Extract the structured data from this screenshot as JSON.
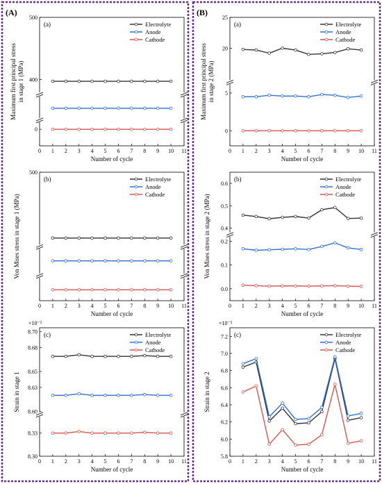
{
  "figure": {
    "panels": [
      {
        "id": "A",
        "label": "(A)"
      },
      {
        "id": "B",
        "label": "(B)"
      }
    ]
  },
  "colors": {
    "frame": "#6a2c91",
    "Electrolyte": "#333333",
    "Anode": "#2f6fd6",
    "Cathode": "#d9534f"
  },
  "chart_data": [
    {
      "id": "A-a",
      "type": "line",
      "panel_label": "(a)",
      "xlabel": "Number of cycle",
      "ylabel": "Maximum first principal stress\nin stage 1 (MPa)",
      "xlim": [
        0,
        11
      ],
      "xticks": [
        0,
        1,
        2,
        3,
        4,
        5,
        6,
        7,
        8,
        9,
        10,
        11
      ],
      "segments": [
        {
          "range": [
            -50,
            20
          ],
          "ticks": [
            0
          ],
          "frac": [
            0,
            0.18
          ]
        },
        {
          "range": [
            70,
            90
          ],
          "ticks": [],
          "frac": [
            0.22,
            0.38
          ]
        },
        {
          "range": [
            380,
            500
          ],
          "ticks": [
            400,
            500
          ],
          "frac": [
            0.42,
            1
          ]
        }
      ],
      "x": [
        1,
        2,
        3,
        4,
        5,
        6,
        7,
        8,
        9,
        10
      ],
      "series": [
        {
          "name": "Electrolyte",
          "values": [
            397,
            397,
            397,
            397,
            397,
            397,
            397,
            397,
            397,
            397
          ]
        },
        {
          "name": "Anode",
          "values": [
            79,
            79,
            79,
            79,
            79,
            79,
            79,
            79,
            79,
            79
          ]
        },
        {
          "name": "Cathode",
          "values": [
            0,
            0,
            0,
            0,
            0,
            0,
            0,
            0,
            0,
            0
          ]
        }
      ]
    },
    {
      "id": "A-b",
      "type": "line",
      "panel_label": "(b)",
      "xlabel": "Number of cycle",
      "ylabel": "Von Mises stress in stage 1 (MPa)",
      "xlim": [
        0,
        11
      ],
      "xticks": [
        0,
        1,
        2,
        3,
        4,
        5,
        6,
        7,
        8,
        9,
        10,
        11
      ],
      "segments": [
        {
          "range": [
            -10,
            30
          ],
          "ticks": [],
          "frac": [
            0,
            0.17
          ]
        },
        {
          "range": [
            120,
            140
          ],
          "ticks": [],
          "frac": [
            0.22,
            0.4
          ]
        },
        {
          "range": [
            370,
            500
          ],
          "ticks": [
            500
          ],
          "frac": [
            0.44,
            1
          ]
        }
      ],
      "x": [
        1,
        2,
        3,
        4,
        5,
        6,
        7,
        8,
        9,
        10
      ],
      "series": [
        {
          "name": "Electrolyte",
          "values": [
            381,
            381,
            381,
            381,
            381,
            381,
            381,
            381,
            381,
            381
          ]
        },
        {
          "name": "Anode",
          "values": [
            130,
            130,
            130,
            130,
            130,
            130,
            130,
            130,
            130,
            130
          ]
        },
        {
          "name": "Cathode",
          "values": [
            10,
            10,
            10,
            10,
            10,
            10,
            10,
            10,
            10,
            10
          ]
        }
      ]
    },
    {
      "id": "A-c",
      "type": "line",
      "panel_label": "(c)",
      "xlabel": "Number of cycle",
      "ylabel": "Strain in stage 1",
      "yexp": "×10⁻⁵",
      "xlim": [
        0,
        11
      ],
      "xticks": [
        0,
        1,
        2,
        3,
        4,
        5,
        6,
        7,
        8,
        9,
        10,
        11
      ],
      "segments": [
        {
          "range": [
            8.3,
            8.35
          ],
          "ticks": [
            8.3,
            8.33
          ],
          "frac": [
            0,
            0.3
          ]
        },
        {
          "range": [
            8.6,
            8.705
          ],
          "ticks": [
            8.6,
            8.63,
            8.65,
            8.68,
            8.7
          ],
          "frac": [
            0.35,
            1
          ]
        }
      ],
      "x": [
        1,
        2,
        3,
        4,
        5,
        6,
        7,
        8,
        9,
        10
      ],
      "series": [
        {
          "name": "Electrolyte",
          "values": [
            8.669,
            8.669,
            8.671,
            8.669,
            8.669,
            8.669,
            8.669,
            8.67,
            8.669,
            8.669
          ]
        },
        {
          "name": "Anode",
          "values": [
            8.62,
            8.62,
            8.622,
            8.62,
            8.62,
            8.62,
            8.62,
            8.621,
            8.62,
            8.62
          ]
        },
        {
          "name": "Cathode",
          "values": [
            8.33,
            8.33,
            8.332,
            8.33,
            8.33,
            8.33,
            8.33,
            8.331,
            8.33,
            8.33
          ]
        }
      ]
    },
    {
      "id": "B-a",
      "type": "line",
      "panel_label": "(a)",
      "xlabel": "Number of cycle",
      "ylabel": "Maximum first principal stress\nin stage 2 (MPa)",
      "xlim": [
        0,
        11
      ],
      "xticks": [
        0,
        1,
        2,
        3,
        4,
        5,
        6,
        7,
        8,
        9,
        10,
        11
      ],
      "segments": [
        {
          "range": [
            -2,
            6
          ],
          "ticks": [
            0,
            5
          ],
          "frac": [
            0,
            0.47
          ]
        },
        {
          "range": [
            15,
            25
          ],
          "ticks": [
            20,
            25
          ],
          "frac": [
            0.52,
            1
          ]
        }
      ],
      "x": [
        1,
        2,
        3,
        4,
        5,
        6,
        7,
        8,
        9,
        10
      ],
      "series": [
        {
          "name": "Electrolyte",
          "values": [
            19.8,
            19.7,
            19.2,
            20.0,
            19.7,
            19.0,
            19.1,
            19.3,
            19.9,
            19.7
          ]
        },
        {
          "name": "Anode",
          "values": [
            4.5,
            4.5,
            4.7,
            4.6,
            4.6,
            4.5,
            4.8,
            4.7,
            4.4,
            4.6
          ]
        },
        {
          "name": "Cathode",
          "values": [
            0,
            0,
            0,
            0,
            0,
            0,
            0,
            0,
            0,
            0
          ]
        }
      ]
    },
    {
      "id": "B-b",
      "type": "line",
      "panel_label": "(b)",
      "xlabel": "Number of cycle",
      "ylabel": "Von Mises stress in stage 2 (MPa)",
      "xlim": [
        0,
        11
      ],
      "xticks": [
        0,
        1,
        2,
        3,
        4,
        5,
        6,
        7,
        8,
        9,
        10,
        11
      ],
      "segments": [
        {
          "range": [
            -0.05,
            0.22
          ],
          "ticks": [
            0.0,
            0.1,
            0.2
          ],
          "frac": [
            0,
            0.5
          ]
        },
        {
          "range": [
            0.38,
            0.65
          ],
          "ticks": [
            0.4,
            0.5,
            0.6
          ],
          "frac": [
            0.53,
            1
          ]
        }
      ],
      "x": [
        1,
        2,
        3,
        4,
        5,
        6,
        7,
        8,
        9,
        10
      ],
      "series": [
        {
          "name": "Electrolyte",
          "values": [
            0.458,
            0.452,
            0.442,
            0.448,
            0.452,
            0.445,
            0.482,
            0.492,
            0.443,
            0.445
          ]
        },
        {
          "name": "Anode",
          "values": [
            0.168,
            0.162,
            0.164,
            0.166,
            0.168,
            0.165,
            0.178,
            0.193,
            0.172,
            0.165
          ]
        },
        {
          "name": "Cathode",
          "values": [
            0.015,
            0.013,
            0.011,
            0.012,
            0.012,
            0.011,
            0.012,
            0.013,
            0.011,
            0.01
          ]
        }
      ]
    },
    {
      "id": "B-c",
      "type": "line",
      "panel_label": "(c)",
      "xlabel": "Number of cycle",
      "ylabel": "Strain in stage 2",
      "yexp": "×10⁻⁵",
      "xlim": [
        0,
        11
      ],
      "xticks": [
        0,
        1,
        2,
        3,
        4,
        5,
        6,
        7,
        8,
        9,
        10,
        11
      ],
      "segments": [
        {
          "range": [
            5.8,
            7.3
          ],
          "ticks": [
            5.8,
            6.0,
            6.2,
            6.4,
            6.6,
            6.8,
            7.0,
            7.2
          ],
          "frac": [
            0,
            1
          ]
        }
      ],
      "x": [
        1,
        2,
        3,
        4,
        5,
        6,
        7,
        8,
        9,
        10
      ],
      "series": [
        {
          "name": "Electrolyte",
          "values": [
            6.84,
            6.9,
            6.21,
            6.36,
            6.18,
            6.19,
            6.32,
            6.94,
            6.22,
            6.25
          ]
        },
        {
          "name": "Anode",
          "values": [
            6.88,
            6.94,
            6.26,
            6.42,
            6.23,
            6.24,
            6.37,
            6.96,
            6.27,
            6.3
          ]
        },
        {
          "name": "Cathode",
          "values": [
            6.55,
            6.62,
            5.94,
            6.11,
            5.93,
            5.94,
            6.05,
            6.64,
            5.95,
            5.98
          ]
        }
      ]
    }
  ]
}
